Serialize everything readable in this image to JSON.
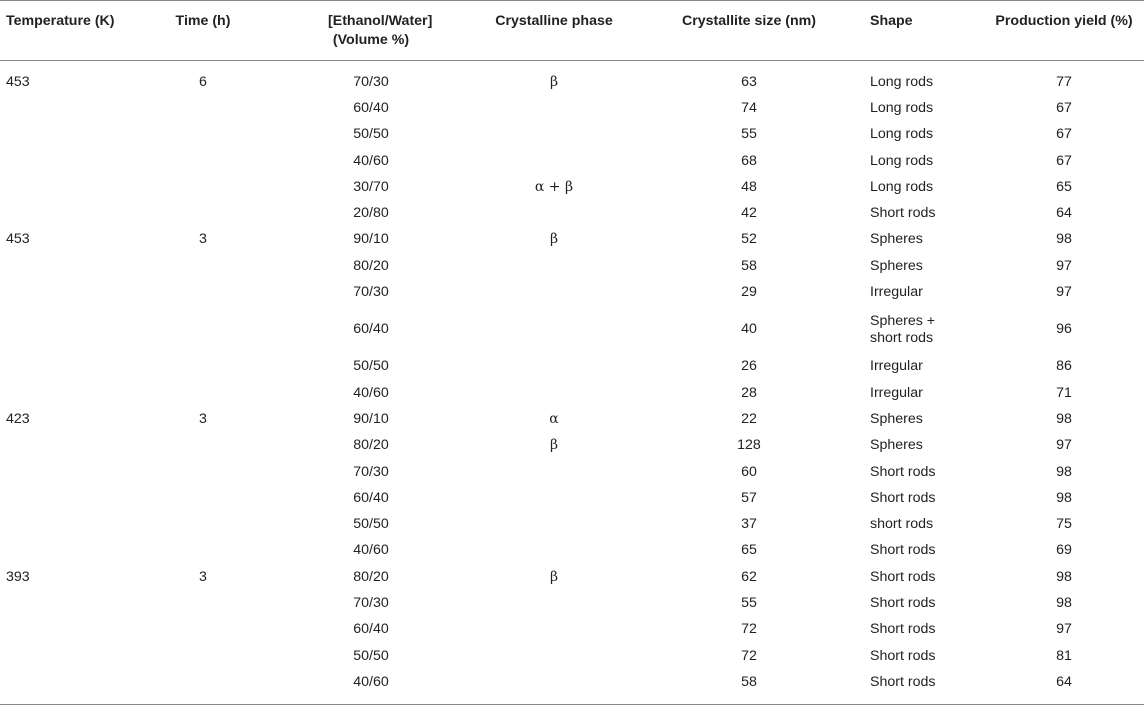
{
  "table": {
    "headers": [
      "Temperature (K)",
      "Time (h)",
      "[Ethanol/Water] (Volume %)",
      "Crystalline phase",
      "Crystallite size (nm)",
      "Shape",
      "Production yield (%)"
    ],
    "rows": [
      [
        "453",
        "6",
        "70/30",
        "β",
        "63",
        "Long rods",
        "77"
      ],
      [
        "",
        "",
        "60/40",
        "",
        "74",
        "Long rods",
        "67"
      ],
      [
        "",
        "",
        "50/50",
        "",
        "55",
        "Long rods",
        "67"
      ],
      [
        "",
        "",
        "40/60",
        "",
        "68",
        "Long rods",
        "67"
      ],
      [
        "",
        "",
        "30/70",
        "α + β",
        "48",
        "Long rods",
        "65"
      ],
      [
        "",
        "",
        "20/80",
        "",
        "42",
        "Short rods",
        "64"
      ],
      [
        "453",
        "3",
        "90/10",
        "β",
        "52",
        "Spheres",
        "98"
      ],
      [
        "",
        "",
        "80/20",
        "",
        "58",
        "Spheres",
        "97"
      ],
      [
        "",
        "",
        "70/30",
        "",
        "29",
        "Irregular",
        "97"
      ],
      [
        "",
        "",
        "60/40",
        "",
        "40",
        "Spheres + short rods",
        "96"
      ],
      [
        "",
        "",
        "50/50",
        "",
        "26",
        "Irregular",
        "86"
      ],
      [
        "",
        "",
        "40/60",
        "",
        "28",
        "Irregular",
        "71"
      ],
      [
        "423",
        "3",
        "90/10",
        "α",
        "22",
        "Spheres",
        "98"
      ],
      [
        "",
        "",
        "80/20",
        "β",
        "128",
        "Spheres",
        "97"
      ],
      [
        "",
        "",
        "70/30",
        "",
        "60",
        "Short rods",
        "98"
      ],
      [
        "",
        "",
        "60/40",
        "",
        "57",
        "Short rods",
        "98"
      ],
      [
        "",
        "",
        "50/50",
        "",
        "37",
        "short rods",
        "75"
      ],
      [
        "",
        "",
        "40/60",
        "",
        "65",
        "Short rods",
        "69"
      ],
      [
        "393",
        "3",
        "80/20",
        "β",
        "62",
        "Short rods",
        "98"
      ],
      [
        "",
        "",
        "70/30",
        "",
        "55",
        "Short rods",
        "98"
      ],
      [
        "",
        "",
        "60/40",
        "",
        "72",
        "Short rods",
        "97"
      ],
      [
        "",
        "",
        "50/50",
        "",
        "72",
        "Short rods",
        "81"
      ],
      [
        "",
        "",
        "40/60",
        "",
        "58",
        "Short rods",
        "64"
      ]
    ]
  }
}
